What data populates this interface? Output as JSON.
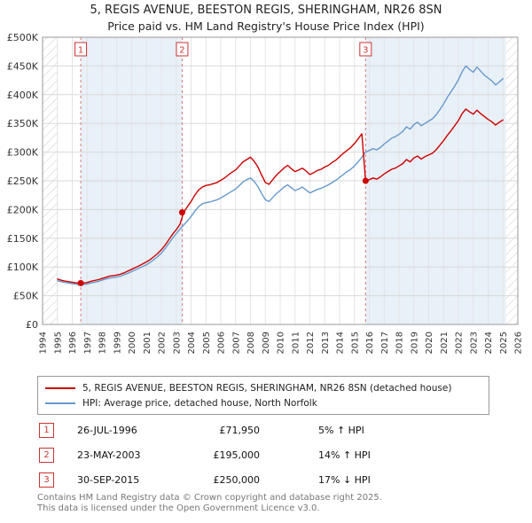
{
  "title": {
    "line1": "5, REGIS AVENUE, BEESTON REGIS, SHERINGHAM, NR26 8SN",
    "line2": "Price paid vs. HM Land Registry's House Price Index (HPI)"
  },
  "chart_data": {
    "type": "line",
    "x_axis_range": [
      1994,
      2026
    ],
    "y_axis_range": [
      0,
      500000
    ],
    "y_tick_step": 50000,
    "y_tick_labels": [
      "£0",
      "£50K",
      "£100K",
      "£150K",
      "£200K",
      "£250K",
      "£300K",
      "£350K",
      "£400K",
      "£450K",
      "£500K"
    ],
    "x_tick_labels": [
      "1994",
      "1995",
      "1996",
      "1997",
      "1998",
      "1999",
      "2000",
      "2001",
      "2002",
      "2003",
      "2004",
      "2005",
      "2006",
      "2007",
      "2008",
      "2009",
      "2010",
      "2011",
      "2012",
      "2013",
      "2014",
      "2015",
      "2016",
      "2017",
      "2018",
      "2019",
      "2020",
      "2021",
      "2022",
      "2023",
      "2024",
      "2025",
      "2026"
    ],
    "x_start": 1995.0,
    "x_step": 0.25,
    "data_span": [
      1995.0,
      2025.2
    ],
    "band_color": "#e8f0f8",
    "grid": true,
    "series": [
      {
        "name": "5, REGIS AVENUE, BEESTON REGIS, SHERINGHAM, NR26 8SN (detached house)",
        "color": "#cc0000",
        "values_k_gbp": [
          79,
          77,
          75.5,
          74.5,
          73.5,
          72.5,
          71.95,
          72,
          73,
          75,
          76.5,
          78,
          80,
          82,
          84,
          85,
          86,
          87.5,
          90,
          93,
          96,
          99,
          102,
          105.5,
          109,
          113,
          118,
          123.5,
          130,
          138,
          147.5,
          157,
          165,
          174,
          195,
          205,
          214,
          225,
          234,
          239,
          242,
          243,
          245,
          247,
          251,
          255,
          260,
          265,
          269,
          276,
          283,
          287,
          291,
          284,
          274,
          260,
          247,
          244,
          252,
          260,
          266,
          272,
          277,
          271,
          266,
          269,
          272,
          267,
          261,
          264,
          268,
          270,
          274,
          277,
          282,
          286,
          292,
          298,
          303,
          308,
          315,
          323,
          332,
          250,
          252,
          255,
          253,
          257,
          262,
          266,
          270,
          272,
          276,
          280,
          287,
          283,
          290,
          293,
          288,
          292,
          295,
          298,
          304,
          312,
          320,
          329,
          337,
          346,
          355,
          367,
          375,
          370,
          366,
          373,
          367,
          362,
          357,
          353,
          347,
          352,
          356
        ]
      },
      {
        "name": "HPI: Average price, detached house, North Norfolk",
        "color": "#6699cc",
        "values_k_gbp": [
          76,
          74.5,
          73,
          72,
          71,
          70,
          69,
          69.5,
          70.5,
          72,
          73.5,
          75,
          77,
          79,
          80.5,
          81.5,
          82.5,
          84,
          86.5,
          89,
          92,
          95,
          98,
          101,
          104,
          108,
          113,
          118,
          124,
          132,
          141,
          150,
          158,
          166,
          173,
          180,
          188,
          197,
          205,
          210,
          212,
          213,
          215,
          217,
          220,
          224,
          228,
          232,
          236,
          242,
          248,
          252,
          255,
          249,
          240,
          228,
          217,
          214,
          221,
          228,
          233,
          239,
          243,
          238,
          233,
          236,
          239,
          234,
          229,
          232,
          235,
          237,
          240,
          243,
          247,
          251,
          256,
          261,
          266,
          270,
          276,
          283,
          291,
          300,
          303,
          306,
          304,
          308,
          314,
          319,
          324,
          327,
          331,
          336,
          344,
          340,
          348,
          352,
          346,
          350,
          354,
          358,
          365,
          374,
          384,
          395,
          405,
          415,
          426,
          440,
          450,
          444,
          439,
          448,
          441,
          434,
          429,
          424,
          417,
          422,
          428
        ]
      }
    ],
    "sales": [
      {
        "label": "1",
        "x": 1996.57,
        "price": 71950
      },
      {
        "label": "2",
        "x": 2003.4,
        "price": 195000
      },
      {
        "label": "3",
        "x": 2015.75,
        "price": 250000
      }
    ],
    "sale_line_color": "#dd7777",
    "sale_badge_color": "#cc3333",
    "marker_color": "#cc0000"
  },
  "legend": {
    "entries": [
      {
        "label": "5, REGIS AVENUE, BEESTON REGIS, SHERINGHAM, NR26 8SN (detached house)",
        "color": "#cc0000"
      },
      {
        "label": "HPI: Average price, detached house, North Norfolk",
        "color": "#6699cc"
      }
    ]
  },
  "transactions": {
    "rows": [
      {
        "num": "1",
        "date": "26-JUL-1996",
        "price": "£71,950",
        "hpi": "5% ↑ HPI"
      },
      {
        "num": "2",
        "date": "23-MAY-2003",
        "price": "£195,000",
        "hpi": "14% ↑ HPI"
      },
      {
        "num": "3",
        "date": "30-SEP-2015",
        "price": "£250,000",
        "hpi": "17% ↓ HPI"
      }
    ]
  },
  "footer": {
    "line1": "Contains HM Land Registry data © Crown copyright and database right 2025.",
    "line2": "This data is licensed under the Open Government Licence v3.0."
  }
}
